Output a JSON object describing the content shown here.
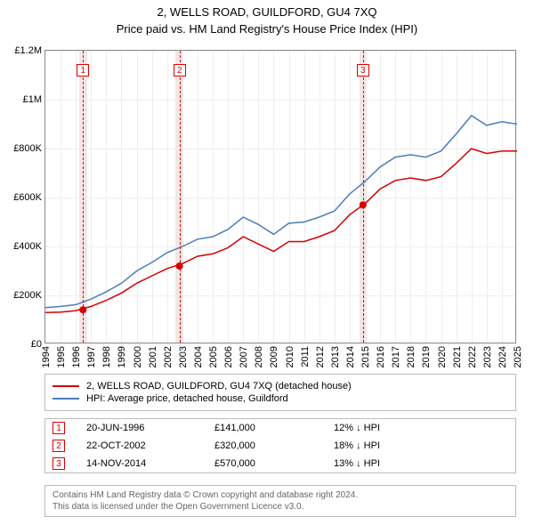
{
  "title": "2, WELLS ROAD, GUILDFORD, GU4 7XQ",
  "subtitle": "Price paid vs. HM Land Registry's House Price Index (HPI)",
  "chart": {
    "type": "line",
    "background_color": "#ffffff",
    "grid_color": "#eeeeee",
    "border_color": "#888888",
    "ylim": [
      0,
      1200000
    ],
    "ytick_step": 200000,
    "yticks": [
      "£0",
      "£200K",
      "£400K",
      "£600K",
      "£800K",
      "£1M",
      "£1.2M"
    ],
    "xlim": [
      1994,
      2025
    ],
    "xticks": [
      1994,
      1995,
      1996,
      1997,
      1998,
      1999,
      2000,
      2001,
      2002,
      2003,
      2004,
      2005,
      2006,
      2007,
      2008,
      2009,
      2010,
      2011,
      2012,
      2013,
      2014,
      2015,
      2016,
      2017,
      2018,
      2019,
      2020,
      2021,
      2022,
      2023,
      2024,
      2025
    ],
    "axis_fontsize": 11,
    "series": [
      {
        "name": "subject",
        "label": "2, WELLS ROAD, GUILDFORD, GU4 7XQ (detached house)",
        "color": "#d40000",
        "line_width": 1.5,
        "x": [
          1994,
          1995,
          1996,
          1997,
          1998,
          1999,
          2000,
          2001,
          2002,
          2003,
          2004,
          2005,
          2006,
          2007,
          2008,
          2009,
          2010,
          2011,
          2012,
          2013,
          2014,
          2015,
          2016,
          2017,
          2018,
          2019,
          2020,
          2021,
          2022,
          2023,
          2024,
          2025
        ],
        "y": [
          130000,
          132000,
          138000,
          155000,
          180000,
          210000,
          250000,
          280000,
          310000,
          330000,
          360000,
          370000,
          395000,
          440000,
          410000,
          380000,
          420000,
          420000,
          440000,
          465000,
          530000,
          575000,
          635000,
          670000,
          680000,
          670000,
          685000,
          740000,
          800000,
          780000,
          790000,
          790000
        ]
      },
      {
        "name": "hpi",
        "label": "HPI: Average price, detached house, Guildford",
        "color": "#4a7ebb",
        "line_width": 1.5,
        "x": [
          1994,
          1995,
          1996,
          1997,
          1998,
          1999,
          2000,
          2001,
          2002,
          2003,
          2004,
          2005,
          2006,
          2007,
          2008,
          2009,
          2010,
          2011,
          2012,
          2013,
          2014,
          2015,
          2016,
          2017,
          2018,
          2019,
          2020,
          2021,
          2022,
          2023,
          2024,
          2025
        ],
        "y": [
          150000,
          155000,
          162000,
          185000,
          215000,
          250000,
          300000,
          335000,
          375000,
          400000,
          430000,
          440000,
          470000,
          520000,
          490000,
          450000,
          495000,
          500000,
          520000,
          545000,
          615000,
          665000,
          725000,
          765000,
          775000,
          765000,
          790000,
          860000,
          935000,
          895000,
          910000,
          900000
        ]
      }
    ],
    "sale_markers": [
      {
        "num": "1",
        "year": 1996.47,
        "price": 141000
      },
      {
        "num": "2",
        "year": 2002.81,
        "price": 320000
      },
      {
        "num": "3",
        "year": 2014.87,
        "price": 570000
      }
    ],
    "marker_band_width_years": 0.5,
    "marker_band_color": "#f4e6e6"
  },
  "legend": {
    "items": [
      {
        "color": "#d40000",
        "label": "2, WELLS ROAD, GUILDFORD, GU4 7XQ (detached house)"
      },
      {
        "color": "#4a7ebb",
        "label": "HPI: Average price, detached house, Guildford"
      }
    ]
  },
  "sales": [
    {
      "num": "1",
      "date": "20-JUN-1996",
      "price": "£141,000",
      "diff": "12% ↓ HPI"
    },
    {
      "num": "2",
      "date": "22-OCT-2002",
      "price": "£320,000",
      "diff": "18% ↓ HPI"
    },
    {
      "num": "3",
      "date": "14-NOV-2014",
      "price": "£570,000",
      "diff": "13% ↓ HPI"
    }
  ],
  "attribution": {
    "line1": "Contains HM Land Registry data © Crown copyright and database right 2024.",
    "line2": "This data is licensed under the Open Government Licence v3.0."
  }
}
